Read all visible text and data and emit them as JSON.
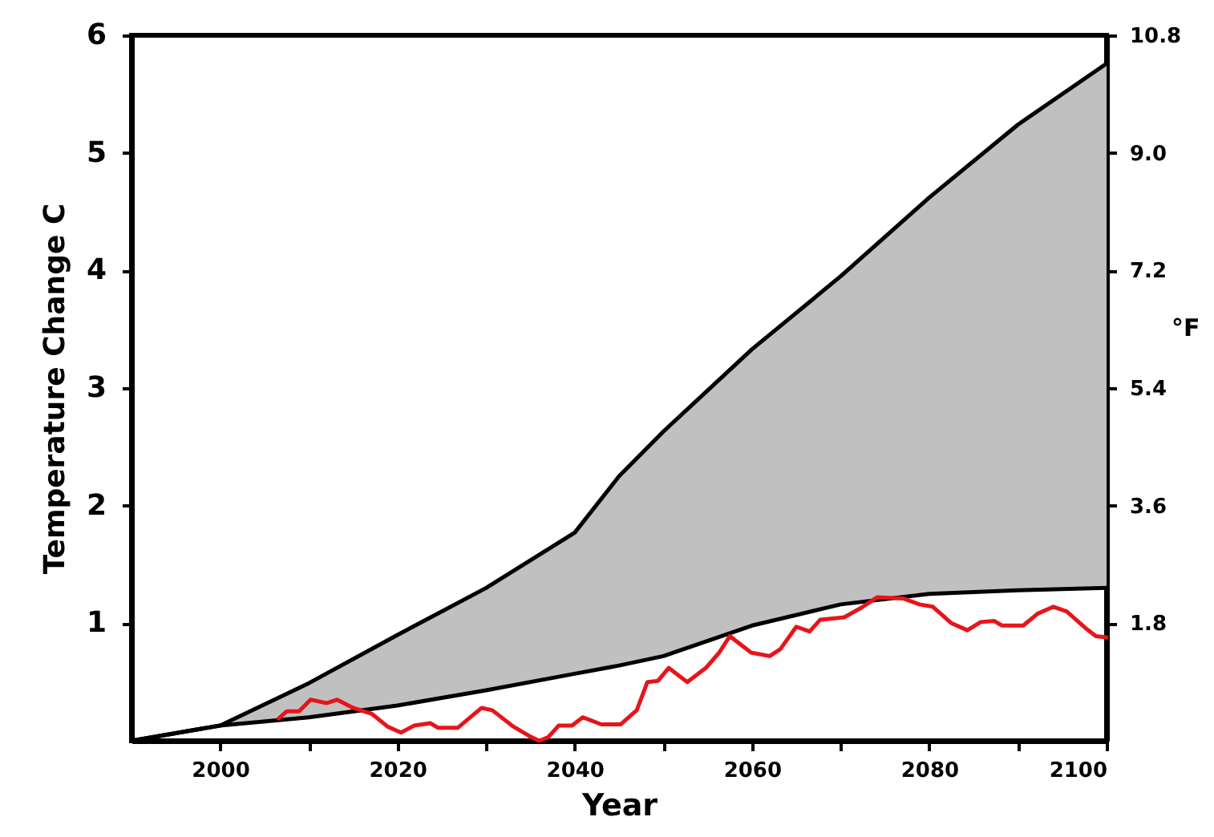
{
  "chart_data": {
    "type": "line",
    "xlabel": "Year",
    "ylabel": "Temperature Change C",
    "y2label": "°F",
    "xlim": [
      1990,
      2100
    ],
    "xticks": [
      {
        "value": 2000,
        "label": "2000"
      },
      {
        "value": 2010,
        "label": null
      },
      {
        "value": 2020,
        "label": "2020"
      },
      {
        "value": 2030,
        "label": null
      },
      {
        "value": 2040,
        "label": "2040"
      },
      {
        "value": 2050,
        "label": null
      },
      {
        "value": 2060,
        "label": "2060"
      },
      {
        "value": 2070,
        "label": null
      },
      {
        "value": 2080,
        "label": "2080"
      },
      {
        "value": 2090,
        "label": null
      },
      {
        "value": 2100,
        "label": "2100"
      }
    ],
    "ylim": [
      0,
      6
    ],
    "yticks": [
      1,
      2,
      3,
      4,
      5,
      6
    ],
    "y2lim": [
      0,
      10.8
    ],
    "y2ticks": [
      1.8,
      3.6,
      5.4,
      7.2,
      {
        "value": 9,
        "label": "9.0"
      },
      10.8
    ],
    "series": [
      {
        "type": "line",
        "color": "#000000",
        "x": [
          1990,
          2000,
          2010,
          2020,
          2030,
          2040,
          2045,
          2050,
          2060,
          2070,
          2080,
          2090,
          2100
        ],
        "values": [
          0,
          0.13,
          0.49,
          0.9,
          1.3,
          1.77,
          2.25,
          2.63,
          3.33,
          3.95,
          4.62,
          5.24,
          5.76
        ],
        "lower": [
          0,
          0.13,
          0.2,
          0.3,
          0.43,
          0.57,
          0.64,
          0.72,
          0.98,
          1.16,
          1.25,
          1.28,
          1.3
        ],
        "upper": [
          0,
          0.13,
          0.49,
          0.9,
          1.3,
          1.77,
          2.25,
          2.63,
          3.33,
          3.95,
          4.62,
          5.24,
          5.76
        ]
      },
      {
        "type": "line",
        "color": "#000000",
        "x": [
          1990,
          2000,
          2010,
          2020,
          2030,
          2040,
          2045,
          2050,
          2060,
          2070,
          2080,
          2090,
          2100
        ],
        "values": [
          0,
          0.13,
          0.2,
          0.3,
          0.43,
          0.57,
          0.64,
          0.72,
          0.98,
          1.16,
          1.25,
          1.28,
          1.3
        ]
      },
      {
        "color": "#e8141b",
        "x": [
          2006.6,
          2007.5,
          2008.9,
          2010.2,
          2012.0,
          2013.2,
          2015.0,
          2017.1,
          2018.9,
          2020.4,
          2021.9,
          2023.7,
          2024.6,
          2026.8,
          2029.5,
          2030.7,
          2033.1,
          2034.9,
          2036.0,
          2037.0,
          2038.2,
          2039.7,
          2040.9,
          2043.0,
          2045.2,
          2047.0,
          2048.2,
          2049.4,
          2050.6,
          2052.7,
          2054.8,
          2056.3,
          2057.5,
          2059.9,
          2062.0,
          2063.2,
          2065.0,
          2066.5,
          2067.7,
          2070.4,
          2072.3,
          2074.1,
          2077.1,
          2078.9,
          2080.4,
          2082.5,
          2084.3,
          2085.8,
          2087.3,
          2088.2,
          2090.6,
          2092.2,
          2094.0,
          2095.5,
          2097.6,
          2098.8,
          2100
        ],
        "values": [
          0.19,
          0.25,
          0.25,
          0.35,
          0.32,
          0.35,
          0.28,
          0.23,
          0.12,
          0.07,
          0.13,
          0.15,
          0.11,
          0.11,
          0.28,
          0.26,
          0.12,
          0.04,
          0.0,
          0.03,
          0.13,
          0.13,
          0.2,
          0.14,
          0.14,
          0.26,
          0.5,
          0.51,
          0.62,
          0.5,
          0.62,
          0.75,
          0.89,
          0.75,
          0.72,
          0.78,
          0.97,
          0.93,
          1.03,
          1.05,
          1.13,
          1.22,
          1.21,
          1.16,
          1.14,
          1.0,
          0.94,
          1.01,
          1.02,
          0.98,
          0.98,
          1.08,
          1.14,
          1.1,
          0.96,
          0.89,
          0.88
        ]
      }
    ]
  }
}
